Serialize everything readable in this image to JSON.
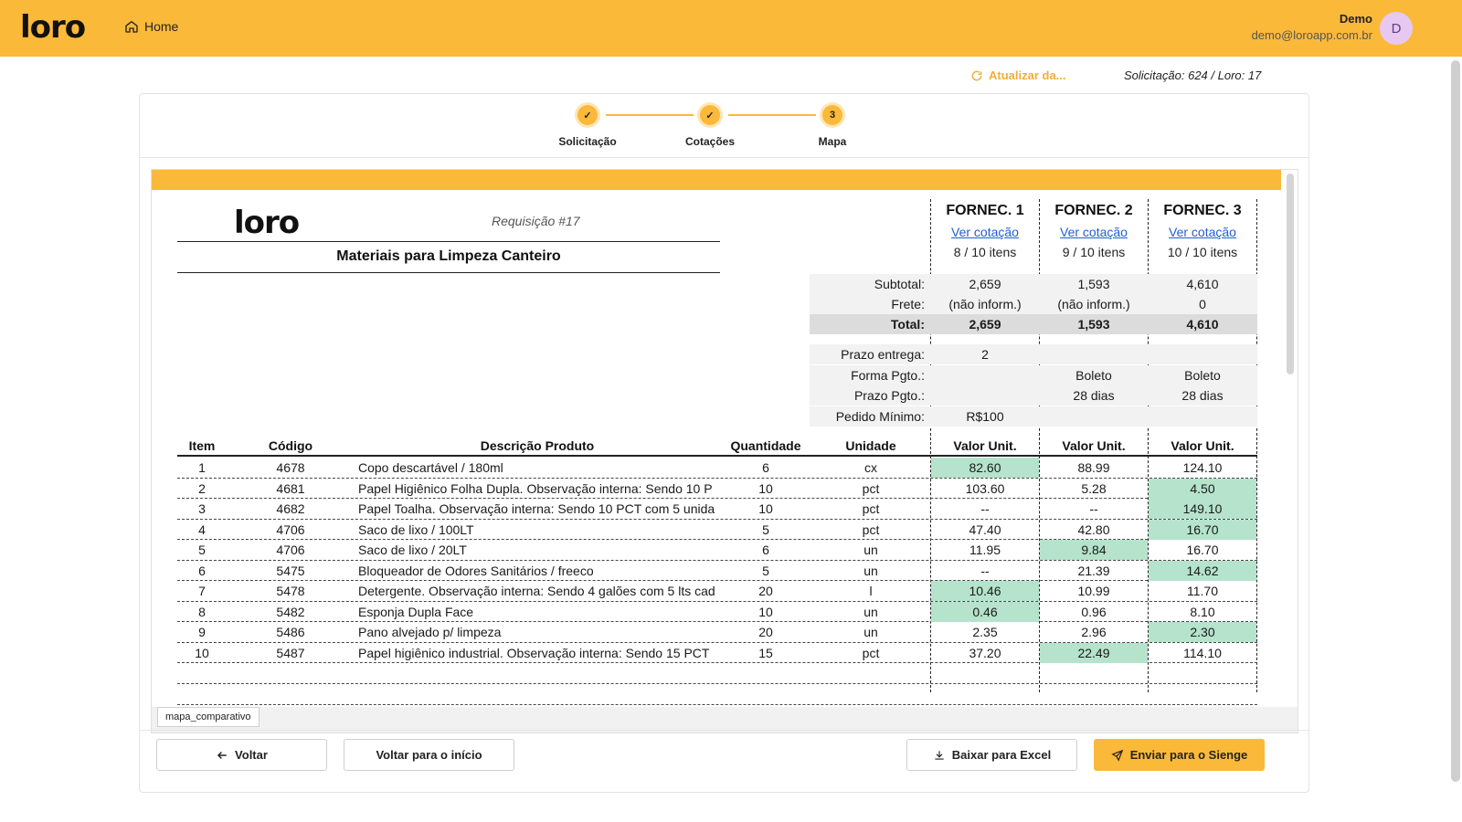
{
  "header": {
    "logo": "loro",
    "home_label": "Home",
    "user_name": "Demo",
    "user_email": "demo@loroapp.com.br",
    "avatar_initial": "D"
  },
  "toolbar": {
    "refresh_label": "Atualizar da...",
    "request_info": "Solicitação: 624 / Loro: 17"
  },
  "stepper": {
    "steps": [
      {
        "label": "Solicitação",
        "mark": "✓"
      },
      {
        "label": "Cotações",
        "mark": "✓"
      },
      {
        "label": "Mapa",
        "mark": "3"
      }
    ]
  },
  "sheet": {
    "logo": "loro",
    "requisition": "Requisição #17",
    "title": "Materiais para Limpeza Canteiro",
    "tab_name": "mapa_comparativo",
    "suppliers": [
      {
        "name": "FORNEC. 1",
        "link": "Ver cotação",
        "items": "8 / 10 itens"
      },
      {
        "name": "FORNEC. 2",
        "link": "Ver cotação",
        "items": "9 / 10 itens"
      },
      {
        "name": "FORNEC. 3",
        "link": "Ver cotação",
        "items": "10 / 10 itens"
      }
    ],
    "summary": [
      {
        "label": "Subtotal:",
        "values": [
          "2,659",
          "1,593",
          "4,610"
        ]
      },
      {
        "label": "Frete:",
        "values": [
          "(não inform.)",
          "(não inform.)",
          "0"
        ]
      },
      {
        "label": "Total:",
        "values": [
          "2,659",
          "1,593",
          "4,610"
        ]
      },
      {
        "label": "Prazo entrega:",
        "values": [
          "2",
          "",
          ""
        ]
      },
      {
        "label": "Forma Pgto.:",
        "values": [
          "",
          "Boleto",
          "Boleto"
        ]
      },
      {
        "label": "Prazo Pgto.:",
        "values": [
          "",
          "28 dias",
          "28 dias"
        ]
      },
      {
        "label": "Pedido Mínimo:",
        "values": [
          "R$100",
          "",
          ""
        ]
      }
    ],
    "columns": {
      "item": "Item",
      "code": "Código",
      "desc": "Descrição Produto",
      "qty": "Quantidade",
      "unit": "Unidade",
      "v1": "Valor Unit.",
      "v2": "Valor Unit.",
      "v3": "Valor Unit."
    },
    "rows": [
      {
        "item": "1",
        "code": "4678",
        "desc": "Copo descartável / 180ml",
        "qty": "6",
        "unit": "cx",
        "v": [
          "82.60",
          "88.99",
          "124.10"
        ],
        "best": 0
      },
      {
        "item": "2",
        "code": "4681",
        "desc": "Papel Higiênico Folha Dupla. Observação interna: Sendo 10 P",
        "qty": "10",
        "unit": "pct",
        "v": [
          "103.60",
          "5.28",
          "4.50"
        ],
        "best": 2
      },
      {
        "item": "3",
        "code": "4682",
        "desc": "Papel Toalha. Observação interna: Sendo 10 PCT com 5 unida",
        "qty": "10",
        "unit": "pct",
        "v": [
          "--",
          "--",
          "149.10"
        ],
        "best": 2
      },
      {
        "item": "4",
        "code": "4706",
        "desc": "Saco de lixo / 100LT",
        "qty": "5",
        "unit": "pct",
        "v": [
          "47.40",
          "42.80",
          "16.70"
        ],
        "best": 2
      },
      {
        "item": "5",
        "code": "4706",
        "desc": "Saco de lixo / 20LT",
        "qty": "6",
        "unit": "un",
        "v": [
          "11.95",
          "9.84",
          "16.70"
        ],
        "best": 1
      },
      {
        "item": "6",
        "code": "5475",
        "desc": "Bloqueador de Odores Sanitários / freeco",
        "qty": "5",
        "unit": "un",
        "v": [
          "--",
          "21.39",
          "14.62"
        ],
        "best": 2
      },
      {
        "item": "7",
        "code": "5478",
        "desc": "Detergente. Observação interna: Sendo 4 galões com 5 lts cad",
        "qty": "20",
        "unit": "l",
        "v": [
          "10.46",
          "10.99",
          "11.70"
        ],
        "best": 0
      },
      {
        "item": "8",
        "code": "5482",
        "desc": "Esponja Dupla Face",
        "qty": "10",
        "unit": "un",
        "v": [
          "0.46",
          "0.96",
          "8.10"
        ],
        "best": 0
      },
      {
        "item": "9",
        "code": "5486",
        "desc": "Pano alvejado p/ limpeza",
        "qty": "20",
        "unit": "un",
        "v": [
          "2.35",
          "2.96",
          "2.30"
        ],
        "best": 2
      },
      {
        "item": "10",
        "code": "5487",
        "desc": "Papel higiênico industrial. Observação interna: Sendo 15 PCT",
        "qty": "15",
        "unit": "pct",
        "v": [
          "37.20",
          "22.49",
          "114.10"
        ],
        "best": 1
      }
    ]
  },
  "footer": {
    "back_label": "Voltar",
    "start_label": "Voltar para o início",
    "excel_label": "Baixar para Excel",
    "send_label": "Enviar para o Sienge"
  },
  "colors": {
    "accent": "#fbb93a",
    "highlight": "#b5e3cc",
    "link": "#1f5fd6"
  }
}
